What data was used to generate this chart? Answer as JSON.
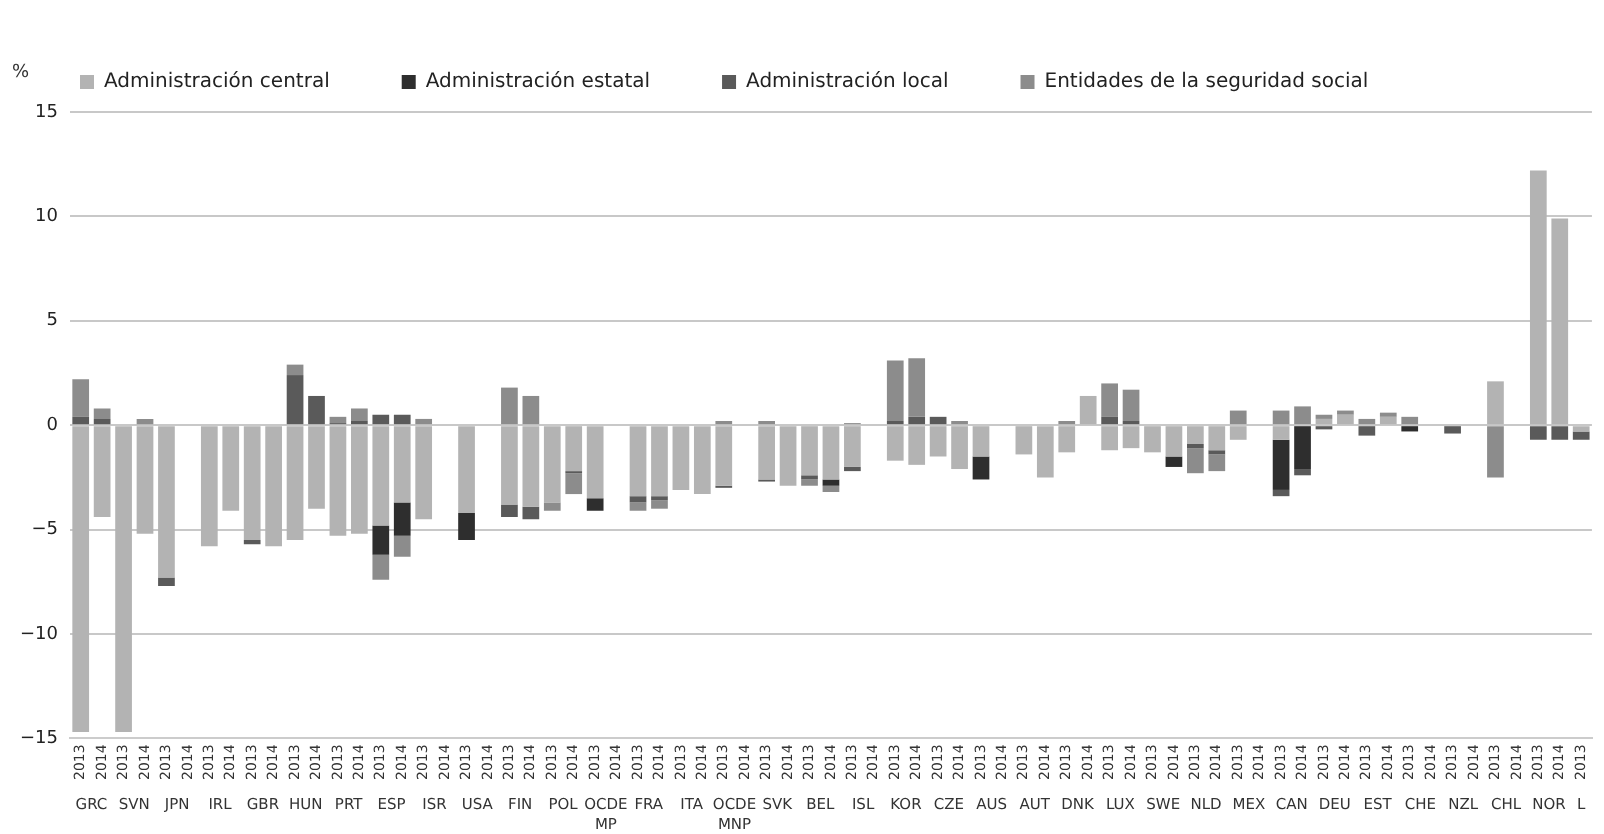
{
  "chart_data": {
    "type": "bar",
    "stacked": true,
    "ylabel": "%",
    "categories": [
      "2013",
      "2014",
      "2013",
      "2014",
      "2013",
      "2014",
      "2013",
      "2014",
      "2013",
      "2014",
      "2013",
      "2014",
      "2013",
      "2014",
      "2013",
      "2014",
      "2013",
      "2014",
      "2013",
      "2014",
      "2013",
      "2014",
      "2013",
      "2014",
      "2013",
      "2014",
      "2013",
      "2014",
      "2013",
      "2014",
      "2013",
      "2014",
      "2013",
      "2014",
      "2013",
      "2014",
      "2013",
      "2014",
      "2013",
      "2014",
      "2013",
      "2014",
      "2013",
      "2014",
      "2013",
      "2014",
      "2013",
      "2014",
      "2013",
      "2014",
      "2013",
      "2014",
      "2013",
      "2014",
      "2013",
      "2014",
      "2013",
      "2014",
      "2013",
      "2014",
      "2013",
      "2014",
      "2013",
      "2014",
      "2013",
      "2014",
      "2013",
      "2014",
      "2013",
      "2014",
      "2013"
    ],
    "annotations": [
      "GRC",
      "SVN",
      "JPN",
      "IRL",
      "GBR",
      "HUN",
      "PRT",
      "ESP",
      "ISR",
      "USA",
      "FIN",
      "POL",
      "OCDE MP",
      "FRA",
      "ITA",
      "OCDE MNP",
      "SVK",
      "BEL",
      "ISL",
      "KOR",
      "CZE",
      "AUS",
      "AUT",
      "DNK",
      "LUX",
      "SWE",
      "NLD",
      "MEX",
      "CAN",
      "DEU",
      "EST",
      "CHE",
      "NZL",
      "CHL",
      "NOR",
      "L"
    ],
    "series": [
      {
        "name": "Administración central",
        "color": "#b3b3b3",
        "values": [
          -14.7,
          -4.4,
          -14.7,
          -5.2,
          -7.3,
          null,
          -5.8,
          -4.1,
          -5.5,
          -5.8,
          -5.5,
          -4.0,
          -5.3,
          -5.2,
          -4.8,
          -3.7,
          -4.5,
          null,
          -4.2,
          null,
          -3.8,
          -3.9,
          -3.7,
          -2.2,
          -3.5,
          null,
          -3.4,
          -3.4,
          -3.1,
          -3.3,
          -2.9,
          null,
          -2.6,
          -2.9,
          -2.4,
          -2.6,
          -2.0,
          null,
          -1.7,
          -1.9,
          -1.5,
          -2.1,
          -1.5,
          null,
          -1.4,
          -2.5,
          -1.3,
          1.4,
          -1.2,
          -1.1,
          -1.3,
          -1.5,
          -0.9,
          -1.2,
          -0.7,
          null,
          -0.7,
          null,
          0.3,
          0.5,
          null,
          0.4,
          null,
          null,
          null,
          null,
          2.1,
          null,
          12.2,
          9.9,
          -0.3
        ]
      },
      {
        "name": "Administración estatal",
        "color": "#2e2e2e",
        "values": [
          null,
          null,
          null,
          null,
          null,
          null,
          null,
          null,
          null,
          null,
          null,
          null,
          null,
          null,
          -1.4,
          -1.6,
          null,
          null,
          -1.3,
          null,
          null,
          null,
          null,
          null,
          -0.6,
          null,
          null,
          null,
          null,
          null,
          null,
          null,
          null,
          null,
          null,
          -0.3,
          null,
          null,
          null,
          null,
          null,
          null,
          -1.1,
          null,
          null,
          null,
          null,
          null,
          null,
          null,
          null,
          -0.5,
          null,
          null,
          null,
          null,
          -2.4,
          -2.1,
          null,
          null,
          null,
          null,
          -0.3,
          null,
          null,
          null,
          null,
          null,
          null,
          null,
          null
        ]
      },
      {
        "name": "Administración local",
        "color": "#5a5a5a",
        "values": [
          0.4,
          0.3,
          null,
          null,
          -0.4,
          null,
          null,
          null,
          -0.2,
          null,
          2.4,
          1.4,
          0.1,
          0.2,
          0.5,
          0.5,
          null,
          null,
          null,
          null,
          -0.6,
          -0.6,
          null,
          -0.1,
          null,
          null,
          -0.3,
          -0.2,
          null,
          null,
          -0.1,
          null,
          -0.1,
          null,
          -0.2,
          null,
          -0.2,
          null,
          0.2,
          0.4,
          0.4,
          null,
          null,
          null,
          null,
          null,
          null,
          null,
          0.4,
          0.2,
          null,
          null,
          -0.2,
          -0.2,
          null,
          null,
          -0.3,
          -0.3,
          -0.2,
          null,
          -0.5,
          null,
          null,
          null,
          -0.4,
          null,
          null,
          null,
          -0.7,
          -0.7,
          -0.4
        ]
      },
      {
        "name": "Entidades de la seguridad social",
        "color": "#8c8c8c",
        "values": [
          1.8,
          0.5,
          null,
          0.3,
          null,
          null,
          null,
          null,
          null,
          null,
          0.5,
          null,
          0.3,
          0.6,
          -1.2,
          -1.0,
          0.3,
          null,
          null,
          null,
          1.8,
          1.4,
          -0.4,
          -1.0,
          null,
          null,
          -0.4,
          -0.4,
          null,
          null,
          0.2,
          null,
          0.2,
          null,
          -0.3,
          -0.3,
          0.1,
          null,
          2.9,
          2.8,
          null,
          0.2,
          null,
          null,
          null,
          null,
          0.2,
          null,
          1.6,
          1.5,
          null,
          null,
          -1.2,
          -0.8,
          0.7,
          null,
          0.7,
          0.9,
          0.2,
          0.2,
          0.3,
          0.2,
          0.4,
          null,
          null,
          null,
          -2.5,
          null,
          null,
          null,
          null
        ]
      }
    ],
    "ylim": [
      -15,
      15
    ],
    "yticks": [
      {
        "value": -15,
        "label": "−15"
      },
      {
        "value": -10,
        "label": "−10"
      },
      {
        "value": -5,
        "label": "−5"
      },
      0,
      5,
      10,
      15
    ],
    "grid": "y",
    "legend": "top"
  }
}
